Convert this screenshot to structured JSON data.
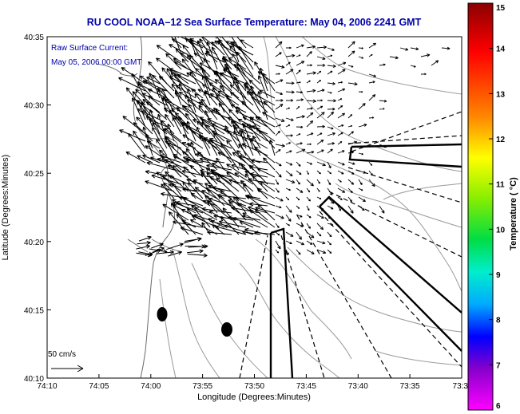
{
  "title": "RU COOL  NOAA–12  Sea Surface Temperature:  May 04, 2006 2241 GMT",
  "legend": {
    "line1": "Raw Surface Current:",
    "line2": "May 05, 2006 00:00 GMT"
  },
  "scale_label": "50 cm/s",
  "axes": {
    "xlabel": "Longitude (Degrees:Minutes)",
    "ylabel": "Latitude (Degrees:Minutes)",
    "x_ticks": [
      "74:10",
      "74:05",
      "74:00",
      "73:55",
      "73:50",
      "73:45",
      "73:40",
      "73:35",
      "73:3"
    ],
    "y_ticks": [
      "40:35",
      "40:30",
      "40:25",
      "40:20",
      "40:15",
      "40:10"
    ]
  },
  "colorbar": {
    "label": "Temperature ( °C)",
    "ticks": [
      "15",
      "14",
      "13",
      "12",
      "11",
      "10",
      "9",
      "8",
      "7",
      "6"
    ],
    "min": 6,
    "max": 15
  },
  "colors": {
    "title": "#0000aa",
    "vectors": "#000000",
    "contours": "#9a9a9a",
    "coast": "#6a6a6a"
  }
}
